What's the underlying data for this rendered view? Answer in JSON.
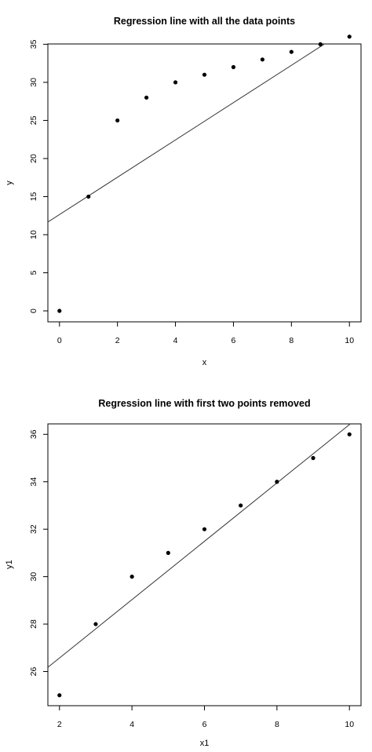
{
  "chart_data": [
    {
      "type": "scatter",
      "title": "Regression line with all the data points",
      "xlabel": "x",
      "ylabel": "y",
      "x": [
        0,
        1,
        2,
        3,
        4,
        5,
        6,
        7,
        8,
        9,
        10
      ],
      "y": [
        0,
        15,
        25,
        28,
        30,
        31,
        32,
        33,
        34,
        35,
        36
      ],
      "xlim": [
        -0.4,
        10.4
      ],
      "ylim": [
        -1.44,
        35.04
      ],
      "xticks": [
        0,
        2,
        4,
        6,
        8,
        10
      ],
      "yticks": [
        0,
        5,
        10,
        15,
        20,
        25,
        30,
        35
      ],
      "regression_line": {
        "intercept": 12.64,
        "slope": 2.45
      },
      "grid": false,
      "legend": "none"
    },
    {
      "type": "scatter",
      "title": "Regression line with first two points removed",
      "xlabel": "x1",
      "ylabel": "y1",
      "x": [
        2,
        3,
        4,
        5,
        6,
        7,
        8,
        9,
        10
      ],
      "y": [
        25,
        28,
        30,
        31,
        32,
        33,
        34,
        35,
        36
      ],
      "xlim": [
        1.68,
        10.32
      ],
      "ylim": [
        24.56,
        36.44
      ],
      "xticks": [
        2,
        4,
        6,
        8,
        10
      ],
      "yticks": [
        26,
        28,
        30,
        32,
        34,
        36
      ],
      "regression_line": {
        "intercept": 24.11,
        "slope": 1.23
      },
      "grid": false,
      "legend": "none"
    }
  ]
}
